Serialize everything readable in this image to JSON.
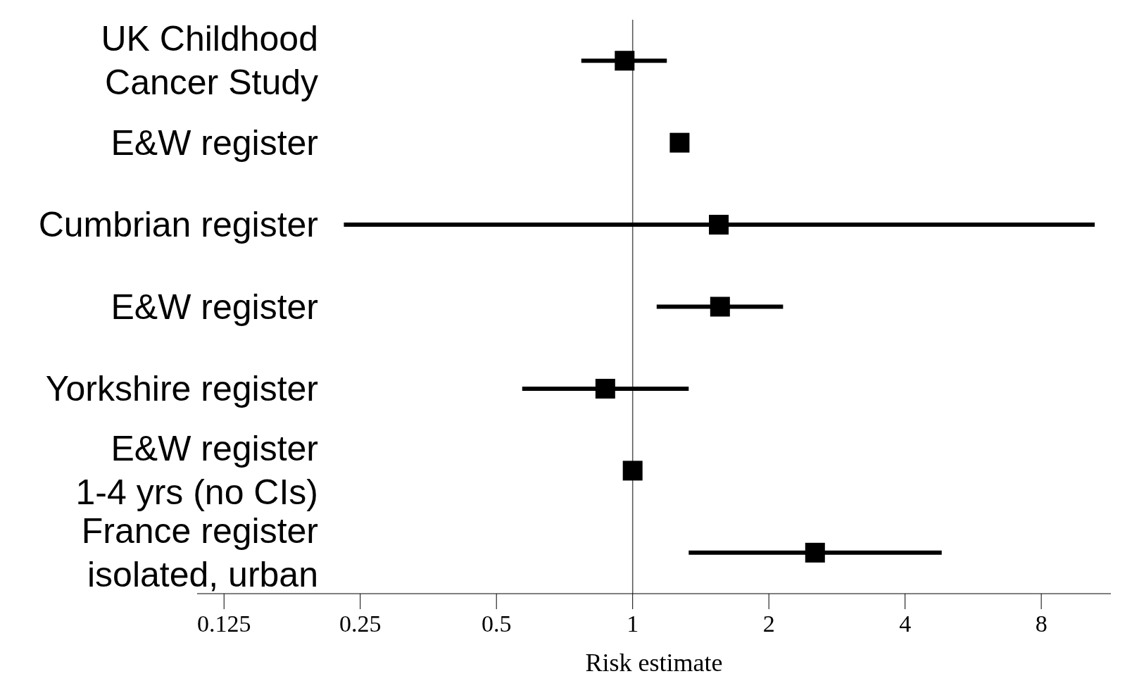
{
  "chart_data": {
    "type": "scatter",
    "orientation": "horizontal",
    "xlabel": "Risk estimate",
    "categories": [
      "UK Childhood\nCancer Study",
      "E&W register",
      "Cumbrian register",
      "E&W register",
      "Yorkshire register",
      "E&W register\n1-4 yrs (no CIs)",
      "France register\nisolated, urban"
    ],
    "values": [
      0.96,
      1.27,
      1.55,
      1.56,
      0.87,
      1.0,
      2.53
    ],
    "errors": [
      [
        0.77,
        1.19
      ],
      null,
      [
        0.23,
        10.5
      ],
      [
        1.13,
        2.15
      ],
      [
        0.57,
        1.33
      ],
      null,
      [
        1.33,
        4.82
      ]
    ],
    "color": "#000000",
    "marker": "square",
    "log": "x",
    "xlim": [
      0.109,
      11.4
    ],
    "xticks": [
      0.125,
      0.25,
      0.5,
      1,
      2,
      4,
      8
    ],
    "ref_lines": [
      {
        "axis": "x",
        "value": 1,
        "color": "#555555",
        "line_style": "solid"
      }
    ]
  }
}
